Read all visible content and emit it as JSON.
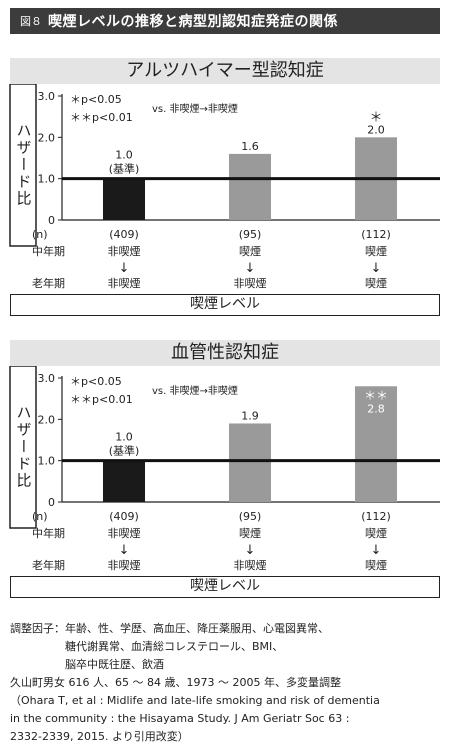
{
  "header": {
    "figure_number": "図８",
    "title": "喫煙レベルの推移と病型別認知症発症の関係"
  },
  "panels": [
    {
      "title": "アルツハイマー型認知症",
      "xlabel": "喫煙レベル"
    },
    {
      "title": "血管性認知症",
      "xlabel": "喫煙レベル"
    }
  ],
  "labels": {
    "ylabel": "ハザード比",
    "n_label": "(n)",
    "row_midlife": "中年期",
    "row_latelife": "老年期",
    "arrow": "↓",
    "baseline_note": "(基準)",
    "sig_legend_1": "＊p<0.05",
    "sig_legend_2": "＊＊p<0.01",
    "comparison": "vs. 非喫煙→非喫煙"
  },
  "chart_data": [
    {
      "type": "bar",
      "title": "アルツハイマー型認知症",
      "xlabel": "喫煙レベル",
      "ylabel": "ハザード比",
      "ylim": [
        0,
        3.0
      ],
      "yticks": [
        "0",
        "1.0",
        "2.0",
        "3.0"
      ],
      "reference_line": 1.0,
      "categories": [
        "非喫煙→非喫煙",
        "喫煙→非喫煙",
        "喫煙→喫煙"
      ],
      "midlife": [
        "非喫煙",
        "喫煙",
        "喫煙"
      ],
      "latelife": [
        "非喫煙",
        "非喫煙",
        "喫煙"
      ],
      "n": [
        "(409)",
        "(95)",
        "(112)"
      ],
      "values": [
        1.0,
        1.6,
        2.0
      ],
      "value_labels": [
        "1.0",
        "1.6",
        "2.0"
      ],
      "significance": [
        "",
        "",
        "＊"
      ],
      "colors": [
        "#1a1a1a",
        "#9a9a9a",
        "#9a9a9a"
      ]
    },
    {
      "type": "bar",
      "title": "血管性認知症",
      "xlabel": "喫煙レベル",
      "ylabel": "ハザード比",
      "ylim": [
        0,
        3.0
      ],
      "yticks": [
        "0",
        "1.0",
        "2.0",
        "3.0"
      ],
      "reference_line": 1.0,
      "categories": [
        "非喫煙→非喫煙",
        "喫煙→非喫煙",
        "喫煙→喫煙"
      ],
      "midlife": [
        "非喫煙",
        "喫煙",
        "喫煙"
      ],
      "latelife": [
        "非喫煙",
        "非喫煙",
        "喫煙"
      ],
      "n": [
        "(409)",
        "(95)",
        "(112)"
      ],
      "values": [
        1.0,
        1.9,
        2.8
      ],
      "value_labels": [
        "1.0",
        "1.9",
        "2.8"
      ],
      "significance": [
        "",
        "",
        "＊＊"
      ],
      "colors": [
        "#1a1a1a",
        "#9a9a9a",
        "#9a9a9a"
      ]
    }
  ],
  "footer": {
    "adjust_label": "調整因子：",
    "adjust_lines": [
      "年齢、性、学歴、高血圧、降圧薬服用、心電図異常、",
      "糖代謝異常、血清総コレステロール、BMI、",
      "脳卒中既往歴、飲酒"
    ],
    "study_line": "久山町男女 616 人、65 ～ 84 歳、1973 ～ 2005 年、多変量調整",
    "citation_lines": [
      "（Ohara T, et al : Midlife and late-life smoking and risk of dementia",
      "in the community : the Hisayama Study. J Am Geriatr Soc 63 :",
      "2332-2339, 2015. より引用改変）"
    ]
  }
}
